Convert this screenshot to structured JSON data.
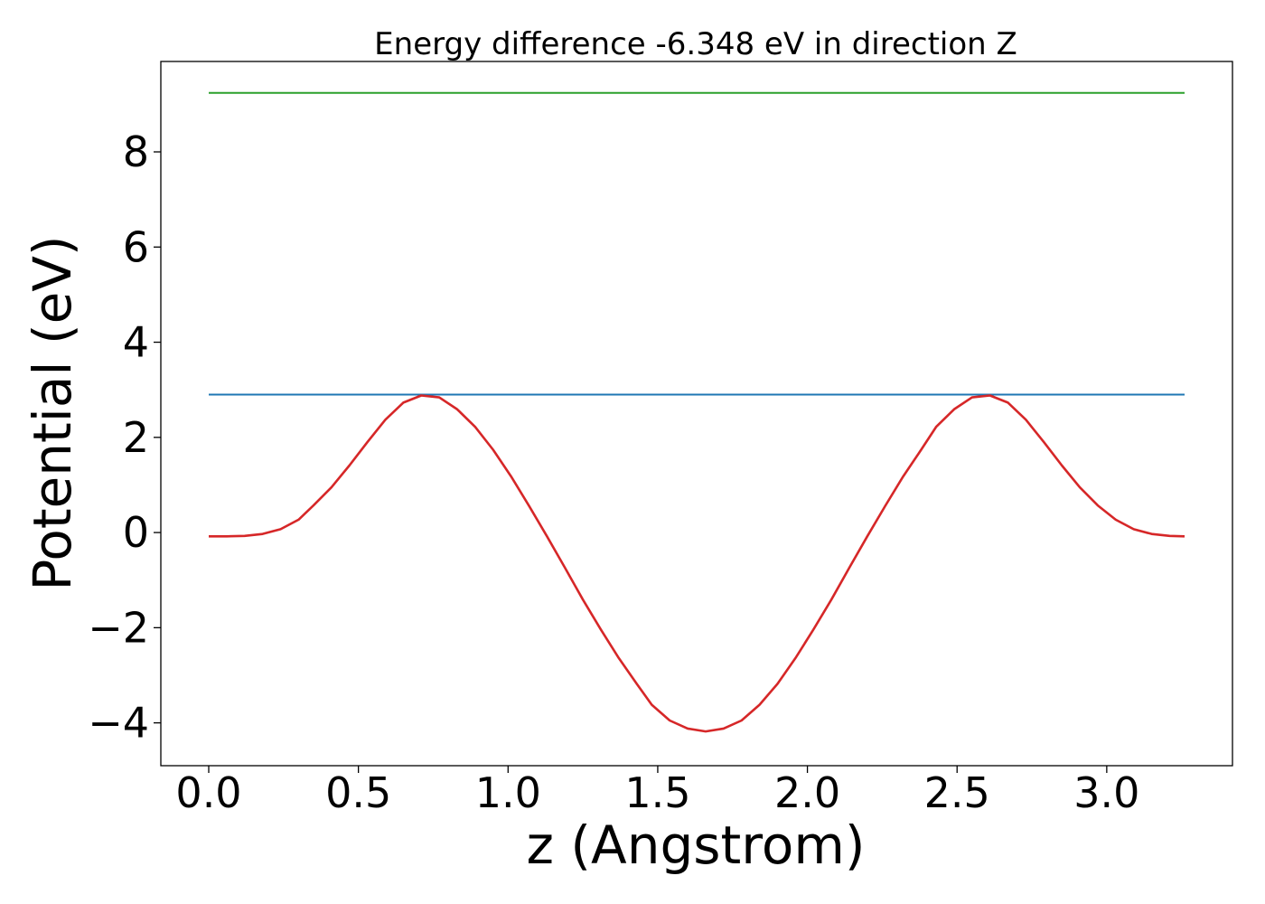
{
  "chart_data": {
    "type": "line",
    "title": "Energy difference -6.348 eV in direction Z",
    "xlabel": "z (Angstrom)",
    "ylabel": "Potential (eV)",
    "xlim": [
      -0.16,
      3.42
    ],
    "ylim": [
      -4.9,
      9.9
    ],
    "xticks": [
      0.0,
      0.5,
      1.0,
      1.5,
      2.0,
      2.5,
      3.0
    ],
    "xtick_labels": [
      "0.0",
      "0.5",
      "1.0",
      "1.5",
      "2.0",
      "2.5",
      "3.0"
    ],
    "yticks": [
      -4,
      -2,
      0,
      2,
      4,
      6,
      8
    ],
    "ytick_labels": [
      "−4",
      "−2",
      "0",
      "2",
      "4",
      "6",
      "8"
    ],
    "grid": false,
    "series": [
      {
        "color": "#2ca02c",
        "kind": "hline",
        "x": [
          0.0,
          3.26
        ],
        "y": [
          9.24,
          9.24
        ]
      },
      {
        "color": "#1f77b4",
        "kind": "hline",
        "x": [
          0.0,
          3.26
        ],
        "y": [
          2.9,
          2.9
        ]
      },
      {
        "color": "#d62728",
        "kind": "line",
        "x": [
          0.0,
          0.06,
          0.12,
          0.18,
          0.24,
          0.3,
          0.35,
          0.41,
          0.47,
          0.53,
          0.59,
          0.65,
          0.71,
          0.77,
          0.83,
          0.89,
          0.95,
          1.01,
          1.07,
          1.13,
          1.19,
          1.25,
          1.31,
          1.37,
          1.43,
          1.48,
          1.54,
          1.6,
          1.66,
          1.72,
          1.78,
          1.84,
          1.9,
          1.96,
          2.02,
          2.08,
          2.14,
          2.2,
          2.26,
          2.32,
          2.38,
          2.43,
          2.49,
          2.55,
          2.61,
          2.67,
          2.73,
          2.79,
          2.85,
          2.91,
          2.97,
          3.03,
          3.09,
          3.15,
          3.21,
          3.26
        ],
        "y": [
          -0.08,
          -0.08,
          -0.07,
          -0.03,
          0.07,
          0.27,
          0.57,
          0.95,
          1.41,
          1.9,
          2.37,
          2.73,
          2.88,
          2.84,
          2.59,
          2.22,
          1.74,
          1.18,
          0.56,
          -0.08,
          -0.74,
          -1.41,
          -2.04,
          -2.64,
          -3.18,
          -3.62,
          -3.95,
          -4.12,
          -4.18,
          -4.12,
          -3.95,
          -3.62,
          -3.18,
          -2.64,
          -2.04,
          -1.41,
          -0.74,
          -0.08,
          0.56,
          1.18,
          1.74,
          2.22,
          2.59,
          2.84,
          2.88,
          2.73,
          2.37,
          1.9,
          1.41,
          0.95,
          0.57,
          0.27,
          0.07,
          -0.03,
          -0.07,
          -0.08
        ]
      }
    ]
  }
}
